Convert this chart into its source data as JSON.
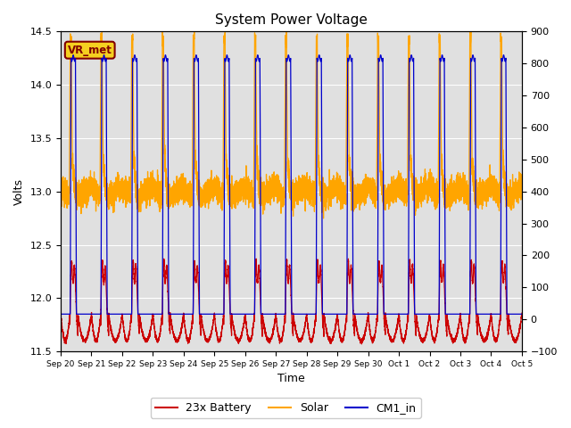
{
  "title": "System Power Voltage",
  "xlabel": "Time",
  "ylabel": "Volts",
  "left_ylim": [
    11.5,
    14.5
  ],
  "right_ylim": [
    -100,
    900
  ],
  "left_yticks": [
    11.5,
    12.0,
    12.5,
    13.0,
    13.5,
    14.0,
    14.5
  ],
  "right_yticks": [
    -100,
    0,
    100,
    200,
    300,
    400,
    500,
    600,
    700,
    800,
    900
  ],
  "num_cycles": 15,
  "background_color": "#e0e0e0",
  "figure_bg": "#ffffff",
  "colors": {
    "battery": "#cc0000",
    "solar": "#ffa500",
    "cm1": "#0000cc"
  },
  "legend_labels": [
    "23x Battery",
    "Solar",
    "CM1_in"
  ],
  "vr_met_label": "VR_met",
  "x_tick_labels": [
    "Sep 20",
    "Sep 21",
    "Sep 22",
    "Sep 23",
    "Sep 24",
    "Sep 25",
    "Sep 26",
    "Sep 27",
    "Sep 28",
    "Sep 29",
    "Sep 30",
    "Oct 1",
    "Oct 2",
    "Oct 3",
    "Oct 4",
    "Oct 5"
  ],
  "x_tick_positions": [
    0,
    1,
    2,
    3,
    4,
    5,
    6,
    7,
    8,
    9,
    10,
    11,
    12,
    13,
    14,
    15
  ]
}
